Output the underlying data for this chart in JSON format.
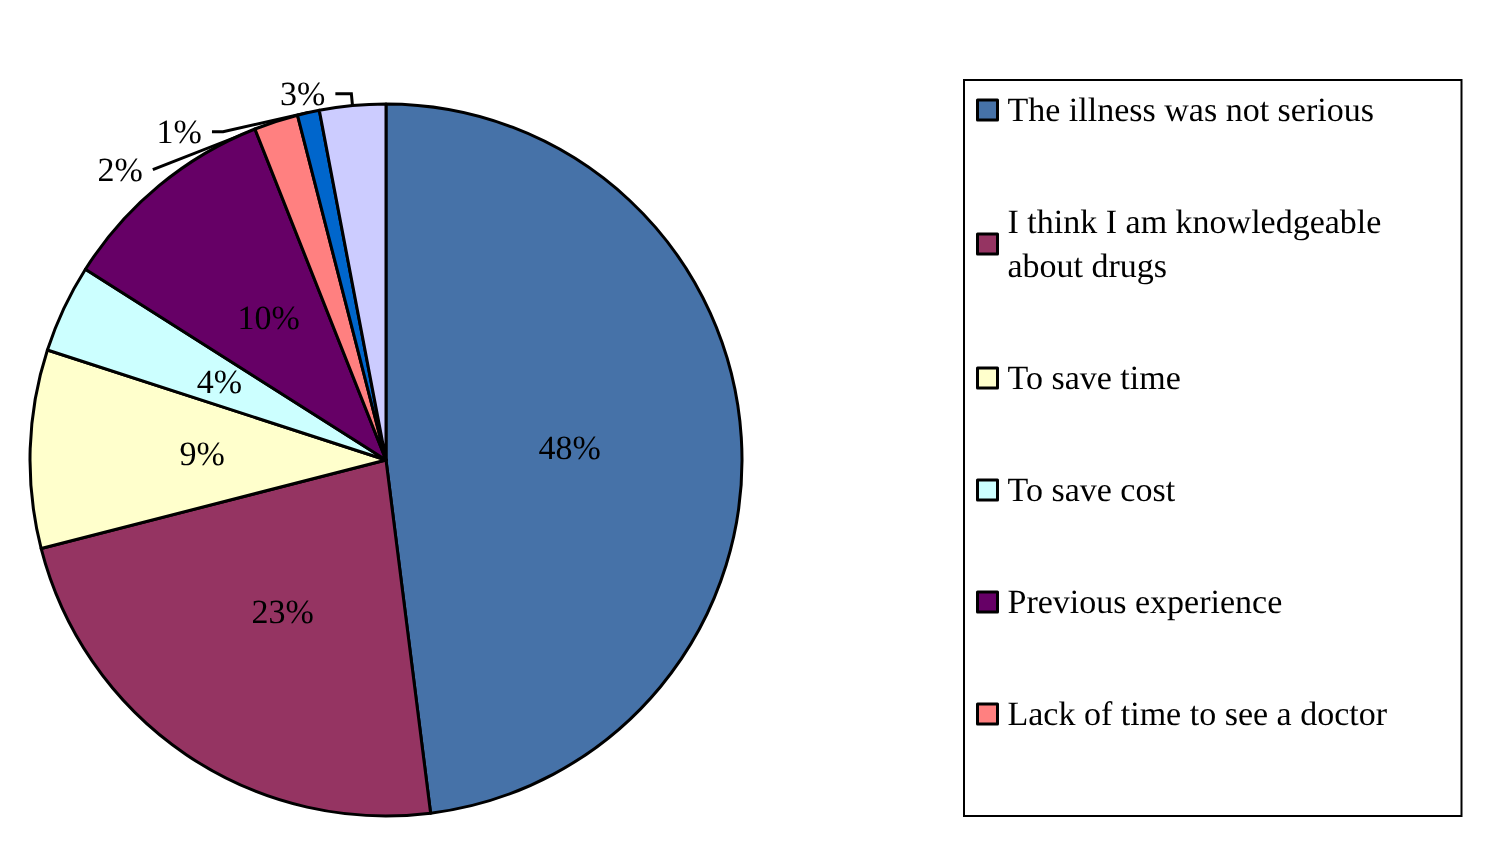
{
  "chart_data": {
    "type": "pie",
    "categories": [
      "The illness was not serious",
      "I think I am knowledgeable about drugs",
      "To save time",
      "To save cost",
      "Previous experience",
      "Lack of time to see a doctor",
      null,
      null
    ],
    "values": [
      48,
      23,
      9,
      4,
      10,
      2,
      1,
      3
    ],
    "colors": [
      "#4672a8",
      "#953462",
      "#ffffcc",
      "#ccffff",
      "#660066",
      "#ff8080",
      "#0066cc",
      "#ccccff"
    ],
    "value_labels": [
      "48%",
      "23%",
      "9%",
      "4%",
      "10%",
      "2%",
      "1%",
      "3%"
    ],
    "legend": "right"
  }
}
